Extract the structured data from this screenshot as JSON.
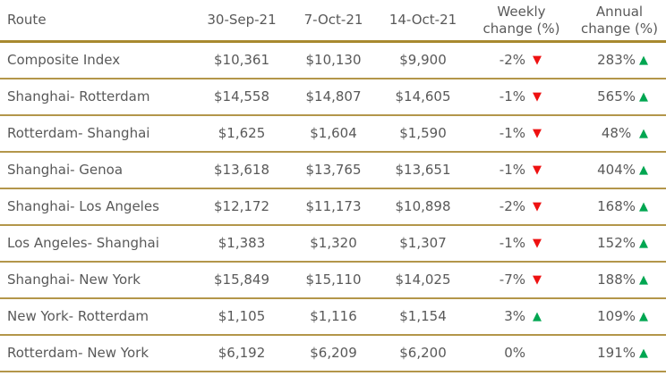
{
  "colors": {
    "text": "#595959",
    "row-border": "#b3964a",
    "header-border": "#a8892f",
    "up": "#00a651",
    "down": "#ee1111",
    "bg": "#ffffff"
  },
  "header": {
    "route": "Route",
    "date_cols": [
      "30-Sep-21",
      "7-Oct-21",
      "14-Oct-21"
    ],
    "weekly_line1": "Weekly",
    "weekly_line2": "change (%)",
    "annual_line1": "Annual",
    "annual_line2": "change (%)"
  },
  "rows": [
    {
      "route": "Composite Index",
      "sep30": "$10,361",
      "oct7": "$10,130",
      "oct14": "$9,900",
      "weekly": {
        "value": "-2%",
        "icon": "▼",
        "direction": "down"
      },
      "annual": {
        "value": "283%",
        "icon": "▲",
        "direction": "up"
      }
    },
    {
      "route": "Shanghai- Rotterdam",
      "sep30": "$14,558",
      "oct7": "$14,807",
      "oct14": "$14,605",
      "weekly": {
        "value": "-1%",
        "icon": "▼",
        "direction": "down"
      },
      "annual": {
        "value": "565%",
        "icon": "▲",
        "direction": "up"
      }
    },
    {
      "route": "Rotterdam- Shanghai",
      "sep30": "$1,625",
      "oct7": "$1,604",
      "oct14": "$1,590",
      "weekly": {
        "value": "-1%",
        "icon": "▼",
        "direction": "down"
      },
      "annual": {
        "value": "48% ",
        "icon": "▲",
        "direction": "up"
      }
    },
    {
      "route": "Shanghai- Genoa",
      "sep30": "$13,618",
      "oct7": "$13,765",
      "oct14": "$13,651",
      "weekly": {
        "value": "-1%",
        "icon": "▼",
        "direction": "down"
      },
      "annual": {
        "value": "404%",
        "icon": "▲",
        "direction": "up"
      }
    },
    {
      "route": "Shanghai- Los Angeles",
      "sep30": "$12,172",
      "oct7": "$11,173",
      "oct14": "$10,898",
      "weekly": {
        "value": "-2%",
        "icon": "▼",
        "direction": "down"
      },
      "annual": {
        "value": "168%",
        "icon": "▲",
        "direction": "up"
      }
    },
    {
      "route": "Los Angeles- Shanghai",
      "sep30": "$1,383",
      "oct7": "$1,320",
      "oct14": "$1,307",
      "weekly": {
        "value": "-1%",
        "icon": "▼",
        "direction": "down"
      },
      "annual": {
        "value": "152%",
        "icon": "▲",
        "direction": "up"
      }
    },
    {
      "route": "Shanghai- New York",
      "sep30": "$15,849",
      "oct7": "$15,110",
      "oct14": "$14,025",
      "weekly": {
        "value": "-7%",
        "icon": "▼",
        "direction": "down"
      },
      "annual": {
        "value": "188%",
        "icon": "▲",
        "direction": "up"
      }
    },
    {
      "route": "New York- Rotterdam",
      "sep30": "$1,105",
      "oct7": "$1,116",
      "oct14": "$1,154",
      "weekly": {
        "value": "3%",
        "icon": "▲",
        "direction": "up"
      },
      "annual": {
        "value": "109%",
        "icon": "▲",
        "direction": "up"
      }
    },
    {
      "route": "Rotterdam- New York",
      "sep30": "$6,192",
      "oct7": "$6,209",
      "oct14": "$6,200",
      "weekly": {
        "value": "0%",
        "icon": "",
        "direction": "none"
      },
      "annual": {
        "value": "191%",
        "icon": "▲",
        "direction": "up"
      }
    }
  ]
}
